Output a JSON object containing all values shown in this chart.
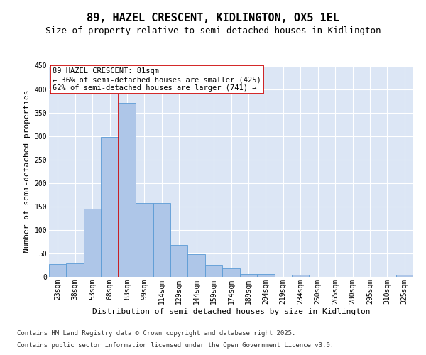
{
  "title_line1": "89, HAZEL CRESCENT, KIDLINGTON, OX5 1EL",
  "title_line2": "Size of property relative to semi-detached houses in Kidlington",
  "xlabel": "Distribution of semi-detached houses by size in Kidlington",
  "ylabel": "Number of semi-detached properties",
  "categories": [
    "23sqm",
    "38sqm",
    "53sqm",
    "68sqm",
    "83sqm",
    "99sqm",
    "114sqm",
    "129sqm",
    "144sqm",
    "159sqm",
    "174sqm",
    "189sqm",
    "204sqm",
    "219sqm",
    "234sqm",
    "250sqm",
    "265sqm",
    "280sqm",
    "295sqm",
    "310sqm",
    "325sqm"
  ],
  "values": [
    27,
    29,
    145,
    298,
    370,
    158,
    158,
    68,
    49,
    25,
    18,
    6,
    6,
    0,
    4,
    0,
    0,
    0,
    0,
    0,
    4
  ],
  "bar_color": "#aec6e8",
  "bar_edge_color": "#5b9bd5",
  "vline_x_index": 4,
  "vline_color": "#cc0000",
  "annotation_text": "89 HAZEL CRESCENT: 81sqm\n← 36% of semi-detached houses are smaller (425)\n62% of semi-detached houses are larger (741) →",
  "annotation_box_color": "#ffffff",
  "annotation_box_edge": "#cc0000",
  "ylim": [
    0,
    450
  ],
  "yticks": [
    0,
    50,
    100,
    150,
    200,
    250,
    300,
    350,
    400,
    450
  ],
  "background_color": "#dce6f5",
  "grid_color": "#ffffff",
  "footer_line1": "Contains HM Land Registry data © Crown copyright and database right 2025.",
  "footer_line2": "Contains public sector information licensed under the Open Government Licence v3.0.",
  "title_fontsize": 11,
  "subtitle_fontsize": 9,
  "axis_label_fontsize": 8,
  "tick_fontsize": 7,
  "annotation_fontsize": 7.5,
  "footer_fontsize": 6.5
}
